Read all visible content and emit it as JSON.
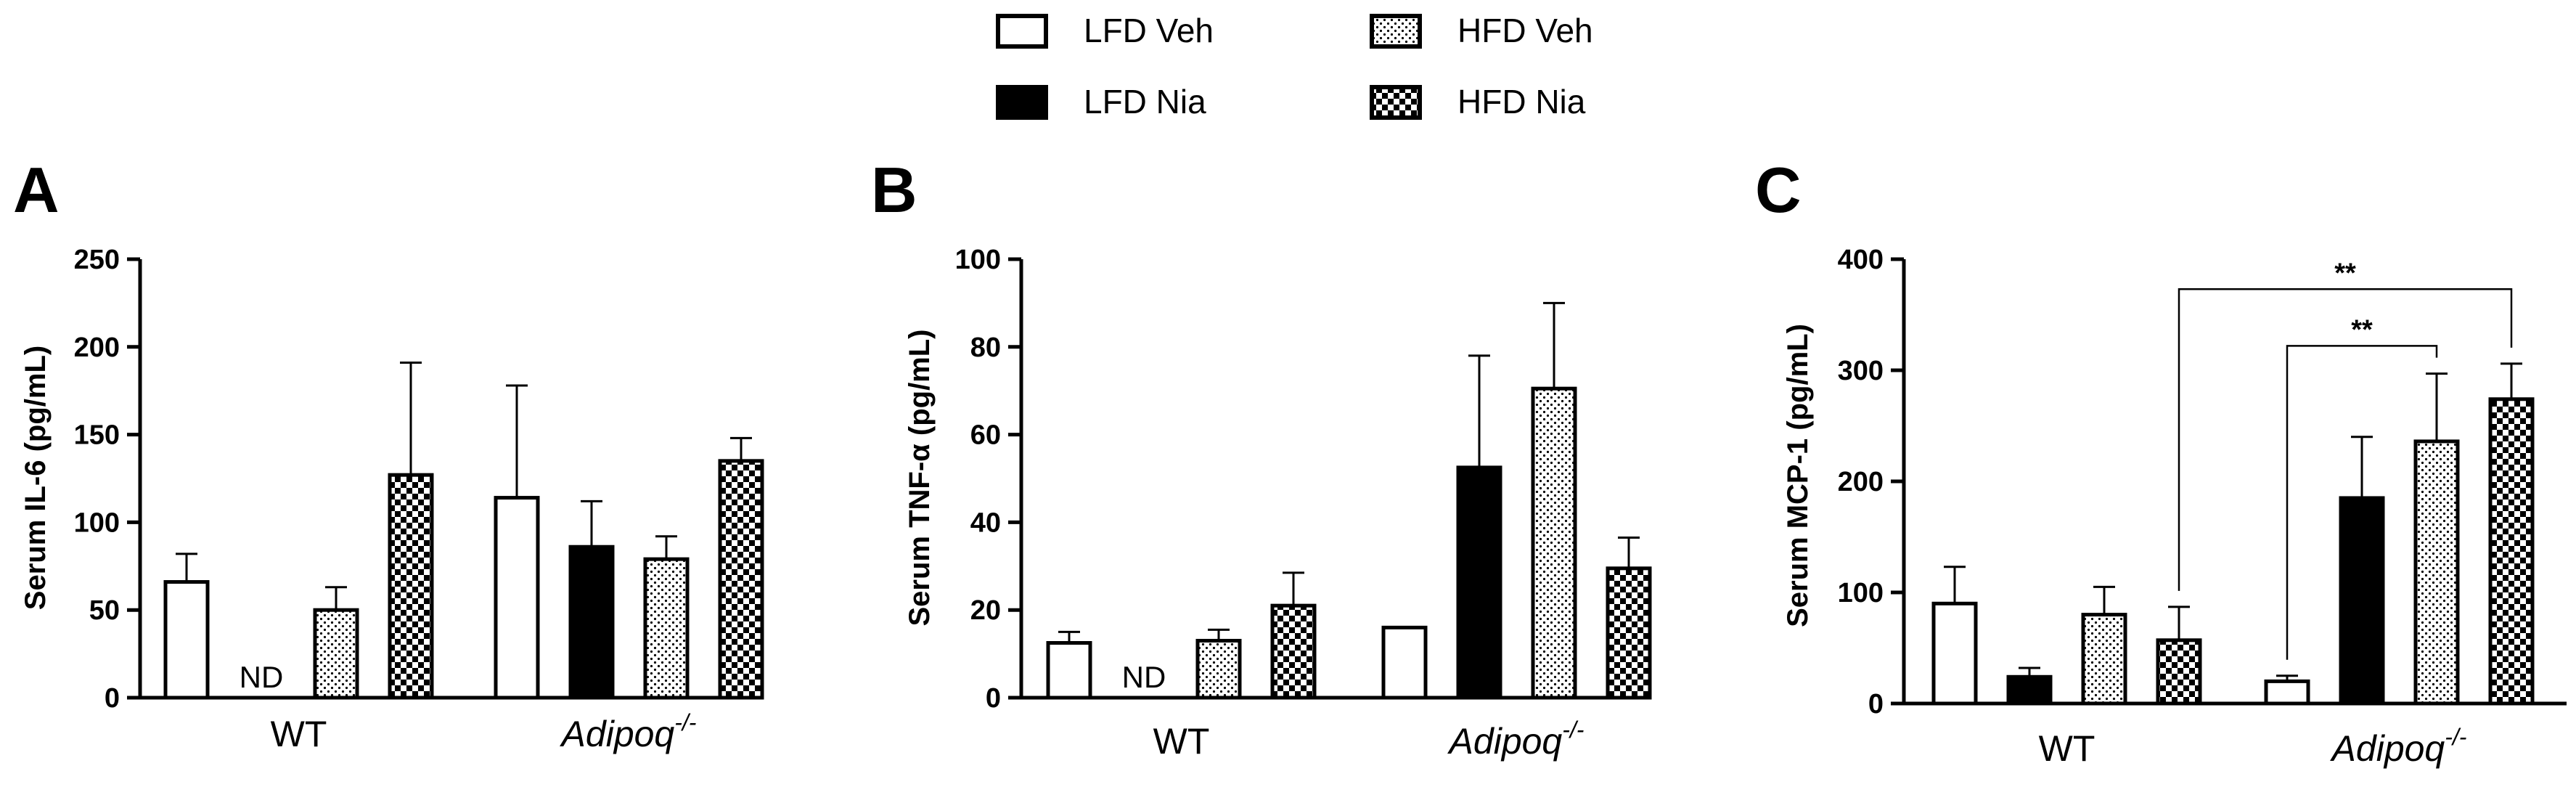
{
  "legend": {
    "items": [
      {
        "label": "LFD Veh",
        "pattern": "open"
      },
      {
        "label": "LFD Nia",
        "pattern": "solid"
      },
      {
        "label": "HFD Veh",
        "pattern": "dots"
      },
      {
        "label": "HFD Nia",
        "pattern": "checker"
      }
    ]
  },
  "colors": {
    "ink": "#000000",
    "background": "#ffffff"
  },
  "chart_data": [
    {
      "panel": "A",
      "type": "bar",
      "ylabel": "Serum IL-6 (pg/mL)",
      "ylim": [
        0,
        250
      ],
      "yticks": [
        0,
        50,
        100,
        150,
        200,
        250
      ],
      "groups": [
        {
          "label": "WT",
          "label_sup": ""
        },
        {
          "label": "Adipoq",
          "label_sup": "-/-"
        }
      ],
      "series": [
        {
          "name": "LFD Veh",
          "values": [
            66,
            114
          ],
          "errors": [
            16,
            64
          ]
        },
        {
          "name": "LFD Nia",
          "values": [
            null,
            86
          ],
          "errors": [
            null,
            26
          ],
          "notes": [
            "ND",
            null
          ]
        },
        {
          "name": "HFD Veh",
          "values": [
            50,
            79
          ],
          "errors": [
            13,
            13
          ]
        },
        {
          "name": "HFD Nia",
          "values": [
            127,
            135
          ],
          "errors": [
            64,
            13
          ]
        }
      ],
      "annotations": []
    },
    {
      "panel": "B",
      "type": "bar",
      "ylabel": "Serum TNF-α (pg/mL)",
      "ylim": [
        0,
        100
      ],
      "yticks": [
        0,
        20,
        40,
        60,
        80,
        100
      ],
      "groups": [
        {
          "label": "WT",
          "label_sup": ""
        },
        {
          "label": "Adipoq",
          "label_sup": "-/-"
        }
      ],
      "series": [
        {
          "name": "LFD Veh",
          "values": [
            12.5,
            16
          ],
          "errors": [
            2.5,
            0
          ]
        },
        {
          "name": "LFD Nia",
          "values": [
            null,
            52.5
          ],
          "errors": [
            null,
            25.5
          ],
          "notes": [
            "ND",
            null
          ]
        },
        {
          "name": "HFD Veh",
          "values": [
            13,
            70.5
          ],
          "errors": [
            2.5,
            19.5
          ]
        },
        {
          "name": "HFD Nia",
          "values": [
            21,
            29.5
          ],
          "errors": [
            7.5,
            7
          ]
        }
      ],
      "annotations": []
    },
    {
      "panel": "C",
      "type": "bar",
      "ylabel": "Serum MCP-1 (pg/mL)",
      "ylim": [
        0,
        400
      ],
      "yticks": [
        0,
        100,
        200,
        300,
        400
      ],
      "groups": [
        {
          "label": "WT",
          "label_sup": ""
        },
        {
          "label": "Adipoq",
          "label_sup": "-/-"
        }
      ],
      "series": [
        {
          "name": "LFD Veh",
          "values": [
            90,
            20
          ],
          "errors": [
            33,
            5
          ]
        },
        {
          "name": "LFD Nia",
          "values": [
            24,
            185
          ],
          "errors": [
            8,
            55
          ]
        },
        {
          "name": "HFD Veh",
          "values": [
            80,
            236
          ],
          "errors": [
            25,
            61
          ]
        },
        {
          "name": "HFD Nia",
          "values": [
            57,
            274
          ],
          "errors": [
            30,
            32
          ]
        }
      ],
      "annotations": [
        {
          "from": {
            "group": 1,
            "series": 0
          },
          "to": {
            "group": 1,
            "series": 2
          },
          "text": "**"
        },
        {
          "from": {
            "group": 0,
            "series": 3
          },
          "to": {
            "group": 1,
            "series": 3
          },
          "text": "**"
        }
      ]
    }
  ]
}
